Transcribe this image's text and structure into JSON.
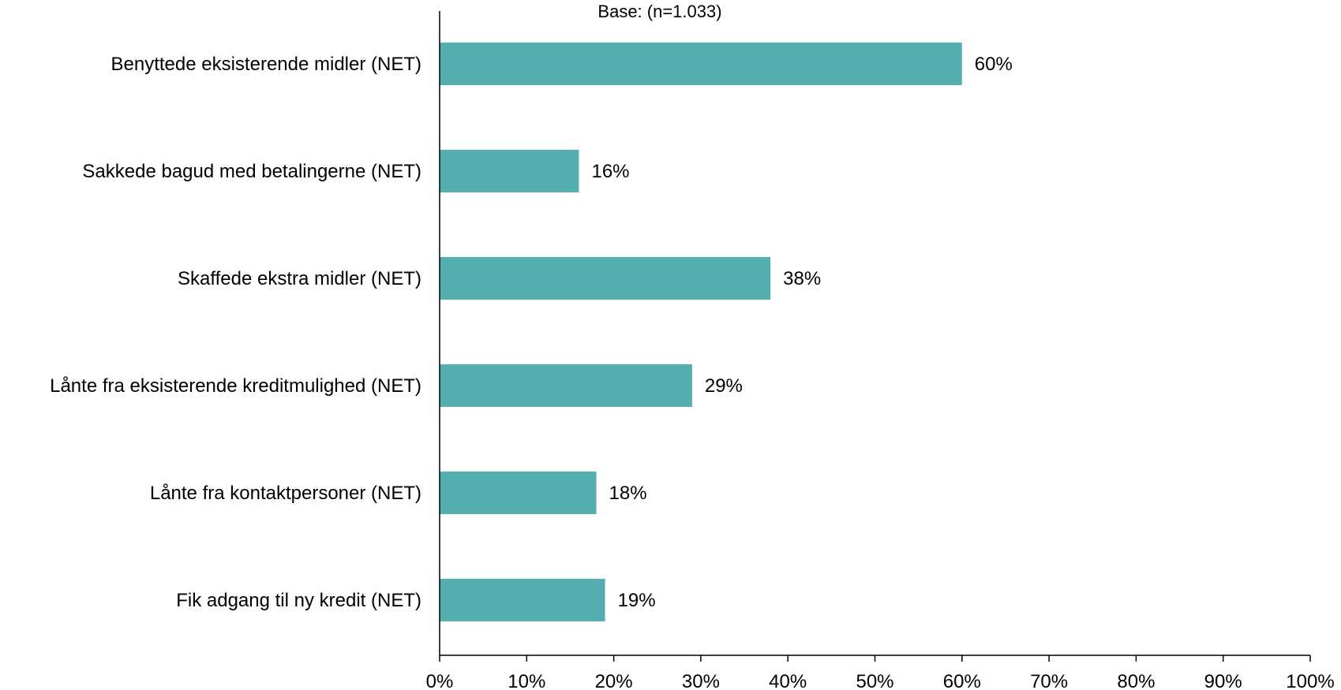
{
  "chart_data": {
    "type": "bar",
    "orientation": "horizontal",
    "subtitle": "Base: (n=1.033)",
    "categories": [
      "Benyttede eksisterende midler (NET)",
      "Sakkede bagud med betalingerne (NET)",
      "Skaffede ekstra midler (NET)",
      "Lånte fra eksisterende kreditmulighed (NET)",
      "Lånte fra kontaktpersoner (NET)",
      "Fik adgang til ny kredit (NET)"
    ],
    "values": [
      60,
      16,
      38,
      29,
      18,
      19
    ],
    "value_labels": [
      "60%",
      "16%",
      "38%",
      "29%",
      "18%",
      "19%"
    ],
    "xlim": [
      0,
      100
    ],
    "xticks": [
      0,
      10,
      20,
      30,
      40,
      50,
      60,
      70,
      80,
      90,
      100
    ],
    "xtick_labels": [
      "0%",
      "10%",
      "20%",
      "30%",
      "40%",
      "50%",
      "60%",
      "70%",
      "80%",
      "90%",
      "100%"
    ],
    "grid": false,
    "bar_color": "#55aeb0"
  }
}
